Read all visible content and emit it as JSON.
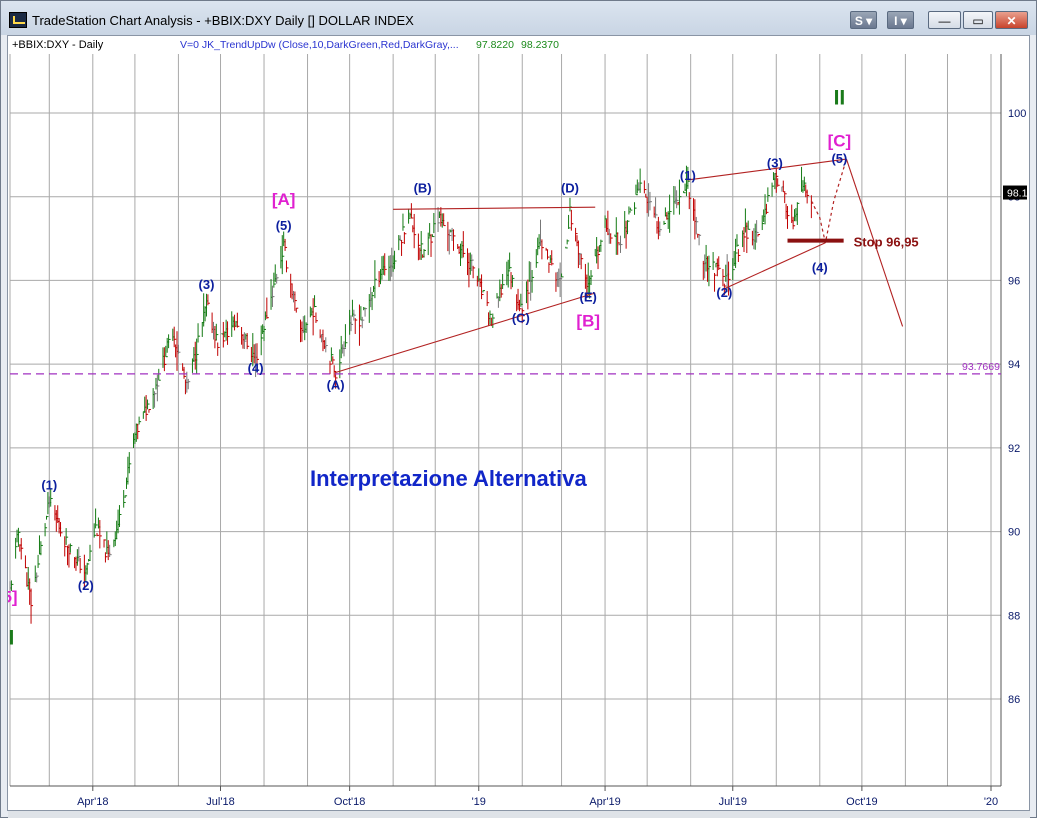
{
  "window": {
    "title": "TradeStation Chart Analysis - +BBIX:DXY Daily [] DOLLAR INDEX",
    "buttons": {
      "s": "S ▾",
      "i": "I ▾",
      "minimize": "—",
      "maximize": "▭",
      "close": "✕"
    }
  },
  "header": {
    "symbol": "+BBIX:DXY - Daily",
    "indicator": "V=0  JK_TrendUpDw  (Close,10,DarkGreen,Red,DarkGray,...",
    "value1": "97.8220",
    "value2": "98.2370"
  },
  "colors": {
    "up_bars": "#137a13",
    "down_bars": "#c00000",
    "neutral_bars": "#777777",
    "wave_labels": "#0c1f9e",
    "major_labels": "#e020d0",
    "trendlines": "#b22222",
    "stop_line": "#8b1010",
    "support_line": "#a030c0",
    "grid": "#a9a9a9",
    "axis_text": "#0a1a6a",
    "title_text": "#1126c8",
    "roman": "#1a7a1a"
  },
  "annotations": {
    "title": "Interpretazione Alternativa",
    "stop_label": "Stop 96,95",
    "support_level_label": "93.7669",
    "last_price_label": "98.1"
  },
  "chart_data": {
    "type": "bar",
    "title": "Interpretazione Alternativa",
    "ylim": [
      84.2,
      101.5
    ],
    "yticks": [
      86,
      88,
      90,
      92,
      94,
      96,
      98,
      100
    ],
    "x_range": [
      "2018-02-01",
      "2020-01-01"
    ],
    "xtick_labels": [
      {
        "date": "2018-04-01",
        "label": "Apr'18"
      },
      {
        "date": "2018-07-01",
        "label": "Jul'18"
      },
      {
        "date": "2018-10-01",
        "label": "Oct'18"
      },
      {
        "date": "2019-01-01",
        "label": "'19"
      },
      {
        "date": "2019-04-01",
        "label": "Apr'19"
      },
      {
        "date": "2019-07-01",
        "label": "Jul'19"
      },
      {
        "date": "2019-10-01",
        "label": "Oct'19"
      },
      {
        "date": "2020-01-01",
        "label": "'20"
      }
    ],
    "price_path": [
      [
        "2018-02-01",
        88.6
      ],
      [
        "2018-02-07",
        90.0
      ],
      [
        "2018-02-16",
        88.3
      ],
      [
        "2018-03-01",
        90.7
      ],
      [
        "2018-03-12",
        89.8
      ],
      [
        "2018-03-27",
        89.0
      ],
      [
        "2018-04-03",
        90.1
      ],
      [
        "2018-04-12",
        89.4
      ],
      [
        "2018-04-20",
        90.3
      ],
      [
        "2018-05-01",
        92.3
      ],
      [
        "2018-05-15",
        93.4
      ],
      [
        "2018-05-28",
        94.8
      ],
      [
        "2018-06-07",
        93.4
      ],
      [
        "2018-06-21",
        95.4
      ],
      [
        "2018-06-29",
        94.5
      ],
      [
        "2018-07-12",
        95.0
      ],
      [
        "2018-07-26",
        94.1
      ],
      [
        "2018-08-03",
        95.2
      ],
      [
        "2018-08-15",
        96.8
      ],
      [
        "2018-08-27",
        94.7
      ],
      [
        "2018-09-05",
        95.3
      ],
      [
        "2018-09-21",
        93.8
      ],
      [
        "2018-10-01",
        95.0
      ],
      [
        "2018-10-10",
        95.1
      ],
      [
        "2018-10-24",
        96.3
      ],
      [
        "2018-11-01",
        96.4
      ],
      [
        "2018-11-12",
        97.6
      ],
      [
        "2018-11-22",
        96.6
      ],
      [
        "2018-12-03",
        97.5
      ],
      [
        "2018-12-14",
        97.0
      ],
      [
        "2018-12-28",
        96.3
      ],
      [
        "2019-01-10",
        95.0
      ],
      [
        "2019-01-22",
        96.3
      ],
      [
        "2019-01-31",
        95.3
      ],
      [
        "2019-02-14",
        96.9
      ],
      [
        "2019-02-28",
        95.9
      ],
      [
        "2019-03-07",
        97.6
      ],
      [
        "2019-03-20",
        95.8
      ],
      [
        "2019-04-01",
        97.3
      ],
      [
        "2019-04-12",
        96.9
      ],
      [
        "2019-04-26",
        98.3
      ],
      [
        "2019-05-09",
        97.3
      ],
      [
        "2019-05-23",
        98.0
      ],
      [
        "2019-05-30",
        98.3
      ],
      [
        "2019-06-10",
        96.5
      ],
      [
        "2019-06-21",
        96.2
      ],
      [
        "2019-06-25",
        95.9
      ],
      [
        "2019-07-10",
        97.2
      ],
      [
        "2019-07-19",
        97.0
      ],
      [
        "2019-07-31",
        98.6
      ],
      [
        "2019-08-13",
        97.3
      ],
      [
        "2019-08-20",
        98.2
      ],
      [
        "2019-08-26",
        97.9
      ]
    ],
    "wave_labels": [
      {
        "text": "5]",
        "date": "2018-02-01",
        "price": 88.3,
        "style": "major"
      },
      {
        "text": "I",
        "date": "2018-02-02",
        "price": 87.3,
        "style": "roman"
      },
      {
        "text": "(1)",
        "date": "2018-03-01",
        "price": 91.0,
        "style": "minor"
      },
      {
        "text": "(2)",
        "date": "2018-03-27",
        "price": 88.6,
        "style": "minor"
      },
      {
        "text": "(3)",
        "date": "2018-06-21",
        "price": 95.8,
        "style": "minor"
      },
      {
        "text": "(4)",
        "date": "2018-07-26",
        "price": 93.8,
        "style": "minor"
      },
      {
        "text": "(5)",
        "date": "2018-08-15",
        "price": 97.2,
        "style": "minor"
      },
      {
        "text": "[A]",
        "date": "2018-08-15",
        "price": 97.8,
        "style": "major"
      },
      {
        "text": "(A)",
        "date": "2018-09-21",
        "price": 93.4,
        "style": "minor"
      },
      {
        "text": "(B)",
        "date": "2018-11-22",
        "price": 98.1,
        "style": "minor"
      },
      {
        "text": "(C)",
        "date": "2019-01-31",
        "price": 95.0,
        "style": "minor"
      },
      {
        "text": "(D)",
        "date": "2019-03-07",
        "price": 98.1,
        "style": "minor"
      },
      {
        "text": "(E)",
        "date": "2019-03-20",
        "price": 95.5,
        "style": "minor"
      },
      {
        "text": "[B]",
        "date": "2019-03-20",
        "price": 94.9,
        "style": "major"
      },
      {
        "text": "(1)",
        "date": "2019-05-30",
        "price": 98.4,
        "style": "minor"
      },
      {
        "text": "(2)",
        "date": "2019-06-25",
        "price": 95.6,
        "style": "minor"
      },
      {
        "text": "(3)",
        "date": "2019-07-31",
        "price": 98.7,
        "style": "minor"
      },
      {
        "text": "(4)",
        "date": "2019-09-01",
        "price": 96.2,
        "style": "minor"
      },
      {
        "text": "(5)",
        "date": "2019-09-15",
        "price": 98.8,
        "style": "minor"
      },
      {
        "text": "[C]",
        "date": "2019-09-15",
        "price": 99.2,
        "style": "major"
      },
      {
        "text": "II",
        "date": "2019-09-15",
        "price": 100.2,
        "style": "roman"
      }
    ],
    "trendlines": [
      {
        "from": [
          "2018-09-21",
          93.8
        ],
        "to": [
          "2019-03-25",
          95.7
        ]
      },
      {
        "from": [
          "2018-11-01",
          97.7
        ],
        "to": [
          "2019-03-25",
          97.75
        ]
      },
      {
        "from": [
          "2019-05-30",
          98.4
        ],
        "to": [
          "2019-09-20",
          98.9
        ]
      },
      {
        "from": [
          "2019-06-25",
          95.8
        ],
        "to": [
          "2019-09-05",
          96.9
        ]
      },
      {
        "from": [
          "2019-09-20",
          98.9
        ],
        "to": [
          "2019-10-30",
          94.9
        ]
      }
    ],
    "projection": [
      [
        "2019-08-26",
        97.9
      ],
      [
        "2019-09-01",
        97.5
      ],
      [
        "2019-09-05",
        96.9
      ],
      [
        "2019-09-11",
        97.9
      ],
      [
        "2019-09-20",
        98.9
      ]
    ],
    "stop_level": {
      "price": 96.95,
      "from": "2019-08-09",
      "to": "2019-09-18"
    },
    "support_level": 93.7669,
    "last_price": 98.1
  }
}
